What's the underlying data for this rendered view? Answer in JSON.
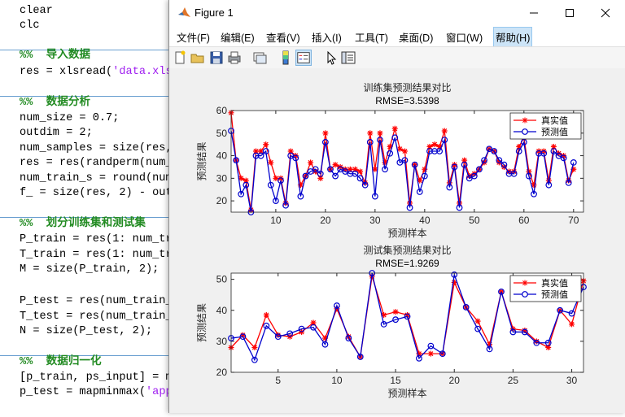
{
  "editor": {
    "lines": [
      {
        "text": "clear",
        "type": "code"
      },
      {
        "text": "clc",
        "type": "code"
      },
      {
        "text": "%%  导入数据",
        "type": "comment"
      },
      {
        "text": "res = xlsread('data.xls",
        "type": "code"
      },
      {
        "text": "%%  数据分析",
        "type": "comment"
      },
      {
        "text": "num_size = 0.7;",
        "type": "code"
      },
      {
        "text": "outdim = 2;",
        "type": "code"
      },
      {
        "text": "num_samples = size(res,",
        "type": "code"
      },
      {
        "text": "res = res(randperm(num_",
        "type": "code"
      },
      {
        "text": "num_train_s = round(num",
        "type": "code"
      },
      {
        "text": "f_ = size(res, 2) - out",
        "type": "code"
      },
      {
        "text": "%%  划分训练集和测试集",
        "type": "comment"
      },
      {
        "text": "P_train = res(1: num_tr",
        "type": "code"
      },
      {
        "text": "T_train = res(1: num_tr",
        "type": "code"
      },
      {
        "text": "M = size(P_train, 2);",
        "type": "code"
      },
      {
        "text": "P_test = res(num_train_",
        "type": "code"
      },
      {
        "text": "T_test = res(num_train_",
        "type": "code"
      },
      {
        "text": "N = size(P_test, 2);",
        "type": "code"
      },
      {
        "text": "%%  数据归一化",
        "type": "comment"
      },
      {
        "text": "[p_train, ps_input] = m",
        "type": "code"
      },
      {
        "text": "p_test = mapminmax('app",
        "type": "code"
      }
    ]
  },
  "window": {
    "title": "Figure 1",
    "minimize_label": "—",
    "maximize_label": "☐",
    "close_label": "✕"
  },
  "menu": {
    "items": [
      "文件(F)",
      "编辑(E)",
      "查看(V)",
      "插入(I)",
      "工具(T)",
      "桌面(D)",
      "窗口(W)",
      "帮助(H)"
    ],
    "active": "帮助(H)"
  },
  "toolbar": {
    "icons": [
      "new-figure-icon",
      "open-icon",
      "save-icon",
      "print-icon",
      "link-figure-icon",
      "colorbar-icon",
      "legend-icon",
      "pointer-icon",
      "property-inspector-icon"
    ]
  },
  "colors": {
    "actual": "#ff0000",
    "predicted": "#0000cd"
  },
  "chart_data": [
    {
      "type": "line",
      "title": "训练集预测结果对比",
      "subtitle": "RMSE=3.5398",
      "xlabel": "预测样本",
      "ylabel": "预测结果",
      "xlim": [
        1,
        72
      ],
      "ylim": [
        15,
        60
      ],
      "xticks": [
        10,
        20,
        30,
        40,
        50,
        60,
        70
      ],
      "yticks": [
        20,
        30,
        40,
        50,
        60
      ],
      "legend_position": "top-right",
      "series": [
        {
          "name": "真实值",
          "marker": "star",
          "values": [
            59,
            38,
            30,
            29,
            16,
            42,
            42,
            45,
            37,
            30,
            30,
            19,
            42,
            40,
            27,
            31,
            37,
            33,
            30,
            50,
            34,
            36,
            35,
            34,
            34,
            34,
            33,
            28,
            50,
            34,
            50,
            37,
            44,
            52,
            43,
            42,
            19,
            36,
            29,
            34,
            44,
            45,
            44,
            51,
            28,
            36,
            19,
            38,
            31,
            32,
            34,
            37,
            43,
            42,
            37,
            35,
            33,
            33,
            44,
            48,
            33,
            27,
            42,
            42,
            29,
            44,
            41,
            40,
            29,
            34
          ],
          "x": [
            1,
            2,
            3,
            4,
            5,
            6,
            7,
            8,
            9,
            10,
            11,
            12,
            13,
            14,
            15,
            16,
            17,
            18,
            19,
            20,
            21,
            22,
            23,
            24,
            25,
            26,
            27,
            28,
            29,
            30,
            31,
            32,
            33,
            34,
            35,
            36,
            37,
            38,
            39,
            40,
            41,
            42,
            43,
            44,
            45,
            46,
            47,
            48,
            49,
            50,
            51,
            52,
            53,
            54,
            55,
            56,
            57,
            58,
            59,
            60,
            61,
            62,
            63,
            64,
            65,
            66,
            67,
            68,
            69,
            70
          ]
        },
        {
          "name": "预测值",
          "marker": "circle",
          "values": [
            51,
            38,
            23,
            27,
            15,
            40,
            40,
            42,
            27,
            20,
            29,
            18,
            40,
            39,
            22,
            31,
            33,
            34,
            32,
            46,
            34,
            31,
            34,
            33,
            32,
            32,
            30,
            27,
            46,
            22,
            47,
            34,
            41,
            48,
            37,
            38,
            17,
            36,
            24,
            31,
            42,
            42,
            42,
            47,
            26,
            35,
            17,
            36,
            30,
            31,
            34,
            38,
            43,
            42,
            38,
            36,
            32,
            32,
            42,
            46,
            31,
            23,
            41,
            41,
            27,
            42,
            40,
            39,
            28,
            37
          ],
          "x": [
            1,
            2,
            3,
            4,
            5,
            6,
            7,
            8,
            9,
            10,
            11,
            12,
            13,
            14,
            15,
            16,
            17,
            18,
            19,
            20,
            21,
            22,
            23,
            24,
            25,
            26,
            27,
            28,
            29,
            30,
            31,
            32,
            33,
            34,
            35,
            36,
            37,
            38,
            39,
            40,
            41,
            42,
            43,
            44,
            45,
            46,
            47,
            48,
            49,
            50,
            51,
            52,
            53,
            54,
            55,
            56,
            57,
            58,
            59,
            60,
            61,
            62,
            63,
            64,
            65,
            66,
            67,
            68,
            69,
            70
          ]
        }
      ]
    },
    {
      "type": "line",
      "title": "测试集预测结果对比",
      "subtitle": "RMSE=1.9269",
      "xlabel": "预测样本",
      "ylabel": "预测结果",
      "xlim": [
        1,
        31
      ],
      "ylim": [
        20,
        52
      ],
      "xticks": [
        5,
        10,
        15,
        20,
        25,
        30
      ],
      "yticks": [
        20,
        30,
        40,
        50
      ],
      "legend_position": "top-right",
      "series": [
        {
          "name": "真实值",
          "marker": "star",
          "values": [
            28,
            32,
            28,
            38.5,
            32,
            31.5,
            33,
            36,
            31,
            40.5,
            31.5,
            25,
            51,
            38.5,
            39.5,
            38.5,
            26,
            26,
            26,
            49,
            41,
            36.5,
            29,
            46,
            34,
            33.5,
            30,
            28,
            40,
            35.5,
            49.5
          ]
        },
        {
          "name": "预测值",
          "marker": "circle",
          "values": [
            31,
            31.5,
            24,
            35,
            31.5,
            32.5,
            34,
            34.5,
            29,
            41.5,
            31,
            25,
            52,
            35.5,
            37,
            38,
            24.5,
            28.5,
            26,
            51.5,
            41,
            34,
            27.5,
            46,
            33,
            33,
            29.5,
            29.5,
            40,
            39,
            47.5
          ]
        }
      ]
    }
  ]
}
